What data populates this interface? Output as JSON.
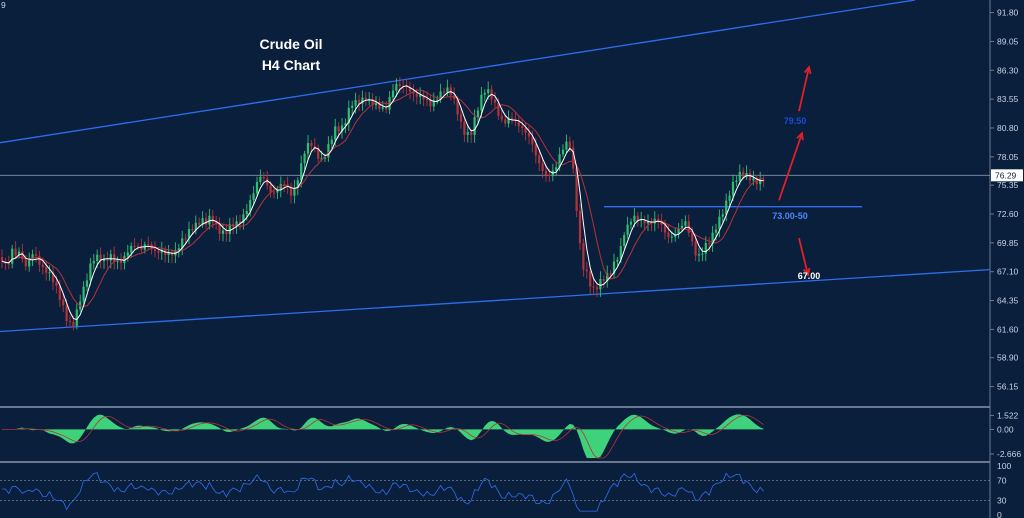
{
  "chart_data": {
    "type": "candlestick",
    "title_lines": [
      "Crude Oil",
      "H4 Chart"
    ],
    "corner_label": "9",
    "colors": {
      "background": "#0a1f3c",
      "bull_candle": "#2fbf71",
      "bear_candle": "#b5323a",
      "trendline": "#2f6df0",
      "ma_fast": "#ffffff",
      "ma_slow": "#b5323a",
      "arrow": "#e0202a",
      "macd_fill": "#3ed37a",
      "rsi_line": "#2f6df0"
    },
    "price_axis": {
      "ticks": [
        "91.80",
        "89.05",
        "86.30",
        "83.55",
        "80.80",
        "78.05",
        "75.35",
        "72.60",
        "69.85",
        "67.10",
        "64.35",
        "61.60",
        "58.90",
        "56.15"
      ],
      "range": [
        54.3,
        93.0
      ],
      "current_price": "76.29"
    },
    "price_path": [
      [
        0,
        68.5
      ],
      [
        4,
        68.0
      ],
      [
        8,
        67.3
      ],
      [
        12,
        69.0
      ],
      [
        16,
        68.2
      ],
      [
        20,
        69.0
      ],
      [
        24,
        67.5
      ],
      [
        28,
        68.0
      ],
      [
        33,
        69.3
      ],
      [
        38,
        68.5
      ],
      [
        43,
        67.5
      ],
      [
        48,
        67.0
      ],
      [
        53,
        66.0
      ],
      [
        58,
        64.8
      ],
      [
        63,
        63.5
      ],
      [
        67,
        62.5
      ],
      [
        72,
        62.0
      ],
      [
        76,
        63.3
      ],
      [
        80,
        64.8
      ],
      [
        85,
        66.0
      ],
      [
        90,
        67.5
      ],
      [
        95,
        68.3
      ],
      [
        100,
        68.0
      ],
      [
        105,
        67.8
      ],
      [
        110,
        68.7
      ],
      [
        116,
        68.3
      ],
      [
        121,
        68.4
      ],
      [
        126,
        69.0
      ],
      [
        131,
        69.5
      ],
      [
        136,
        69.4
      ],
      [
        141,
        68.8
      ],
      [
        146,
        69.6
      ],
      [
        151,
        69.3
      ],
      [
        156,
        69.1
      ],
      [
        161,
        69.5
      ],
      [
        166,
        69.1
      ],
      [
        171,
        68.9
      ],
      [
        176,
        68.9
      ],
      [
        181,
        69.6
      ],
      [
        186,
        70.2
      ],
      [
        191,
        71.0
      ],
      [
        196,
        71.6
      ],
      [
        201,
        72.3
      ],
      [
        206,
        72.2
      ],
      [
        211,
        72.6
      ],
      [
        216,
        71.5
      ],
      [
        221,
        70.5
      ],
      [
        226,
        70.5
      ],
      [
        231,
        71.3
      ],
      [
        236,
        71.6
      ],
      [
        241,
        72.2
      ],
      [
        246,
        73.2
      ],
      [
        251,
        74.3
      ],
      [
        256,
        75.5
      ],
      [
        261,
        76.2
      ],
      [
        266,
        75.3
      ],
      [
        271,
        74.2
      ],
      [
        276,
        74.5
      ],
      [
        281,
        75.5
      ],
      [
        286,
        75.8
      ],
      [
        291,
        74.8
      ],
      [
        296,
        75.5
      ],
      [
        301,
        77.2
      ],
      [
        306,
        78.8
      ],
      [
        311,
        79.0
      ],
      [
        316,
        78.2
      ],
      [
        321,
        77.5
      ],
      [
        326,
        78.6
      ],
      [
        331,
        80.1
      ],
      [
        336,
        81.2
      ],
      [
        341,
        80.7
      ],
      [
        346,
        81.5
      ],
      [
        351,
        82.8
      ],
      [
        356,
        82.9
      ],
      [
        361,
        83.2
      ],
      [
        366,
        83.8
      ],
      [
        371,
        83.5
      ],
      [
        376,
        83.4
      ],
      [
        381,
        82.9
      ],
      [
        386,
        82.6
      ],
      [
        391,
        83.8
      ],
      [
        396,
        84.6
      ],
      [
        401,
        84.5
      ],
      [
        406,
        84.7
      ],
      [
        411,
        84.4
      ],
      [
        416,
        84.2
      ],
      [
        421,
        84.2
      ],
      [
        426,
        83.6
      ],
      [
        431,
        82.8
      ],
      [
        436,
        83.2
      ],
      [
        441,
        83.8
      ],
      [
        446,
        84.4
      ],
      [
        451,
        84.2
      ],
      [
        456,
        83.2
      ],
      [
        461,
        81.5
      ],
      [
        466,
        80.3
      ],
      [
        471,
        80.3
      ],
      [
        476,
        81.8
      ],
      [
        481,
        83.3
      ],
      [
        486,
        84.3
      ],
      [
        491,
        83.8
      ],
      [
        496,
        83.0
      ],
      [
        501,
        81.8
      ],
      [
        506,
        81.7
      ],
      [
        511,
        82.0
      ],
      [
        516,
        81.2
      ],
      [
        521,
        80.5
      ],
      [
        526,
        80.0
      ],
      [
        531,
        79.5
      ],
      [
        536,
        78.2
      ],
      [
        541,
        77.3
      ],
      [
        546,
        76.6
      ],
      [
        551,
        76.6
      ],
      [
        556,
        77.1
      ],
      [
        561,
        78.3
      ],
      [
        566,
        79.0
      ],
      [
        570,
        78.8
      ],
      [
        574,
        76.0
      ],
      [
        578,
        71.5
      ],
      [
        582,
        68.0
      ],
      [
        586,
        67.5
      ],
      [
        590,
        66.3
      ],
      [
        594,
        65.5
      ],
      [
        598,
        65.8
      ],
      [
        602,
        66.2
      ],
      [
        606,
        66.2
      ],
      [
        610,
        66.7
      ],
      [
        615,
        67.8
      ],
      [
        620,
        69.0
      ],
      [
        624,
        71.0
      ],
      [
        628,
        71.8
      ],
      [
        632,
        72.6
      ],
      [
        636,
        72.5
      ],
      [
        640,
        72.0
      ],
      [
        645,
        71.6
      ],
      [
        650,
        71.3
      ],
      [
        655,
        71.8
      ],
      [
        660,
        71.8
      ],
      [
        665,
        71.0
      ],
      [
        670,
        70.6
      ],
      [
        675,
        71.0
      ],
      [
        680,
        71.5
      ],
      [
        685,
        71.8
      ],
      [
        690,
        70.3
      ],
      [
        695,
        68.5
      ],
      [
        700,
        68.3
      ],
      [
        705,
        69.6
      ],
      [
        710,
        70.3
      ],
      [
        715,
        71.5
      ],
      [
        720,
        72.5
      ],
      [
        725,
        73.3
      ],
      [
        730,
        74.5
      ],
      [
        735,
        75.5
      ],
      [
        740,
        76.1
      ],
      [
        745,
        76.3
      ],
      [
        750,
        76.2
      ],
      [
        755,
        76.0
      ],
      [
        760,
        76.0
      ],
      [
        765,
        76.3
      ]
    ],
    "trendlines": [
      {
        "x1": 0,
        "y1": 79.4,
        "x2": 915,
        "y2": 93.0
      },
      {
        "x1": 0,
        "y1": 61.4,
        "x2": 990,
        "y2": 67.3
      },
      {
        "x1": 604,
        "y1": 73.3,
        "x2": 862,
        "y2": 73.3
      }
    ],
    "annotations": {
      "target_up": "79.50",
      "resistance": "73.00-50",
      "target_down": "67.00"
    },
    "macd": {
      "ticks": [
        "1.522",
        "0.00",
        "-2.666"
      ],
      "range": [
        -3.1,
        2.0
      ]
    },
    "rsi": {
      "ticks": [
        "100",
        "70",
        "30",
        "0"
      ],
      "range": [
        0,
        100
      ]
    }
  }
}
